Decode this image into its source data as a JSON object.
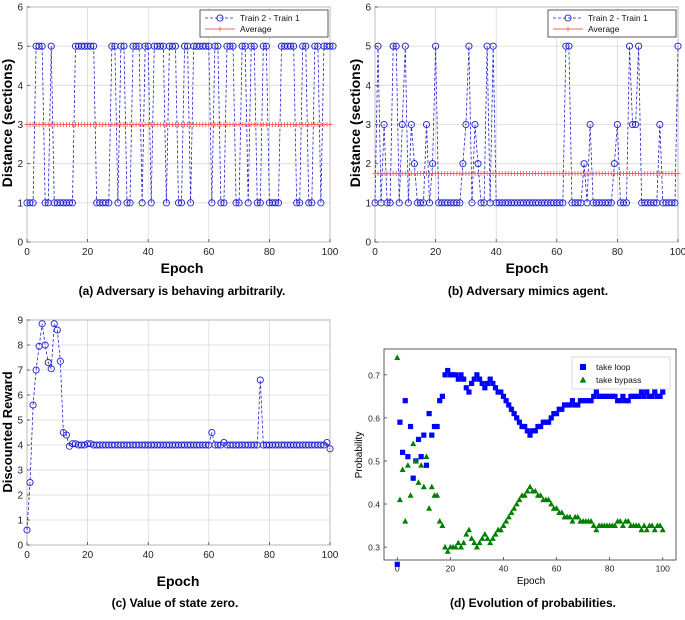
{
  "chart_data": [
    {
      "id": "a",
      "type": "line",
      "caption": "(a)  Adversary is behaving arbitrarily.",
      "xlabel": "Epoch",
      "ylabel": "Distance (sections)",
      "xlim": [
        0,
        100
      ],
      "ylim": [
        0,
        6
      ],
      "xticks": [
        "0",
        "20",
        "40",
        "60",
        "80",
        "100"
      ],
      "yticks": [
        "0",
        "1",
        "2",
        "3",
        "4",
        "5",
        "6"
      ],
      "grid": true,
      "legend_position": "top-right",
      "series": [
        {
          "name": "Train 2 - Train 1",
          "color": "#2020d0",
          "marker": "circle",
          "style": "dashed",
          "values": [
            1,
            1,
            1,
            5,
            5,
            5,
            1,
            1,
            5,
            1,
            1,
            1,
            1,
            1,
            1,
            1,
            5,
            5,
            5,
            5,
            5,
            5,
            5,
            1,
            1,
            1,
            1,
            1,
            5,
            5,
            1,
            5,
            5,
            1,
            1,
            5,
            5,
            5,
            1,
            5,
            5,
            1,
            5,
            5,
            5,
            5,
            1,
            5,
            5,
            5,
            1,
            1,
            5,
            5,
            1,
            5,
            5,
            5,
            5,
            5,
            5,
            1,
            5,
            5,
            1,
            1,
            5,
            5,
            5,
            1,
            1,
            5,
            5,
            1,
            5,
            5,
            1,
            1,
            5,
            5,
            1,
            1,
            1,
            1,
            5,
            5,
            5,
            5,
            5,
            1,
            1,
            5,
            5,
            1,
            1,
            5,
            5,
            1,
            5,
            5,
            5,
            5
          ]
        },
        {
          "name": "Average",
          "color": "#ff6060",
          "marker": "plus",
          "style": "solid",
          "values": [
            3
          ]
        }
      ]
    },
    {
      "id": "b",
      "type": "line",
      "caption": "(b)  Adversary mimics agent.",
      "xlabel": "Epoch",
      "ylabel": "Distance (sections)",
      "xlim": [
        0,
        100
      ],
      "ylim": [
        0,
        6
      ],
      "xticks": [
        "0",
        "20",
        "40",
        "60",
        "80",
        "100"
      ],
      "yticks": [
        "0",
        "1",
        "2",
        "3",
        "4",
        "5",
        "6"
      ],
      "grid": true,
      "legend_position": "top-right",
      "series": [
        {
          "name": "Train 2 - Train 1",
          "color": "#2020d0",
          "marker": "circle",
          "style": "dashed",
          "values": [
            1,
            5,
            1,
            3,
            1,
            1,
            5,
            5,
            1,
            3,
            5,
            1,
            3,
            2,
            1,
            1,
            1,
            3,
            1,
            2,
            5,
            1,
            1,
            1,
            1,
            1,
            1,
            1,
            1,
            2,
            3,
            5,
            1,
            3,
            2,
            1,
            1,
            5,
            1,
            5,
            1,
            1,
            1,
            1,
            1,
            1,
            1,
            1,
            1,
            1,
            1,
            1,
            1,
            1,
            1,
            1,
            1,
            1,
            1,
            1,
            1,
            1,
            1,
            5,
            5,
            1,
            1,
            1,
            1,
            2,
            1,
            3,
            1,
            1,
            1,
            1,
            1,
            1,
            1,
            2,
            3,
            1,
            1,
            1,
            5,
            3,
            3,
            5,
            1,
            1,
            1,
            1,
            1,
            1,
            3,
            1,
            1,
            1,
            1,
            1,
            5
          ]
        },
        {
          "name": "Average",
          "color": "#ff6060",
          "marker": "plus",
          "style": "solid",
          "values": [
            1.75
          ]
        }
      ]
    },
    {
      "id": "c",
      "type": "line",
      "caption": "(c)  Value of state zero.",
      "xlabel": "Epoch",
      "ylabel": "Discounted Reward",
      "xlim": [
        0,
        100
      ],
      "ylim": [
        0,
        9
      ],
      "xticks": [
        "0",
        "20",
        "40",
        "60",
        "80",
        "100"
      ],
      "yticks": [
        "0",
        "1",
        "2",
        "3",
        "4",
        "5",
        "6",
        "7",
        "8",
        "9"
      ],
      "grid": true,
      "series": [
        {
          "name": "Value",
          "color": "#2020d0",
          "marker": "circle",
          "style": "dashed",
          "values": [
            0.6,
            2.5,
            5.6,
            7.0,
            7.95,
            8.85,
            8.0,
            7.3,
            7.05,
            8.85,
            8.6,
            7.35,
            4.5,
            4.4,
            3.95,
            4.05,
            4.05,
            4.0,
            4.0,
            4.0,
            4.05,
            4.05,
            4.0,
            4.0,
            4.0,
            4.0,
            4.0,
            4.0,
            4.0,
            4.0,
            4.0,
            4.0,
            4.0,
            4.0,
            4.0,
            4.0,
            4.0,
            4.0,
            4.0,
            4.0,
            4.0,
            4.0,
            4.0,
            4.0,
            4.0,
            4.0,
            4.0,
            4.0,
            4.0,
            4.0,
            4.0,
            4.0,
            4.0,
            4.0,
            4.0,
            4.0,
            4.0,
            4.0,
            4.0,
            4.0,
            4.0,
            4.5,
            4.0,
            4.0,
            4.0,
            4.1,
            4.0,
            4.0,
            4.0,
            4.0,
            4.0,
            4.0,
            4.0,
            4.0,
            4.0,
            4.0,
            4.0,
            6.6,
            4.0,
            4.0,
            4.0,
            4.0,
            4.0,
            4.0,
            4.0,
            4.0,
            4.0,
            4.0,
            4.0,
            4.0,
            4.0,
            4.0,
            4.0,
            4.0,
            4.0,
            4.0,
            4.0,
            4.0,
            4.0,
            4.1,
            3.85
          ]
        }
      ]
    },
    {
      "id": "d",
      "type": "scatter",
      "caption": "(d)  Evolution of probabilities.",
      "xlabel": "Epoch",
      "ylabel": "Probability",
      "xlim": [
        -5,
        105
      ],
      "ylim": [
        0.27,
        0.76
      ],
      "xticks": [
        "0",
        "20",
        "40",
        "60",
        "80",
        "100"
      ],
      "yticks": [
        "0.3",
        "0.4",
        "0.5",
        "0.6",
        "0.7"
      ],
      "grid": false,
      "legend_position": "top-right",
      "series": [
        {
          "name": "take loop",
          "color": "#0000ff",
          "marker": "square",
          "values": [
            0.26,
            0.59,
            0.52,
            0.64,
            0.51,
            0.58,
            0.46,
            0.5,
            0.55,
            0.51,
            0.56,
            0.49,
            0.61,
            0.56,
            0.58,
            0.58,
            0.64,
            0.65,
            0.7,
            0.71,
            0.7,
            0.7,
            0.7,
            0.69,
            0.7,
            0.69,
            0.67,
            0.66,
            0.68,
            0.69,
            0.7,
            0.69,
            0.68,
            0.67,
            0.68,
            0.69,
            0.68,
            0.67,
            0.66,
            0.66,
            0.65,
            0.64,
            0.63,
            0.62,
            0.61,
            0.6,
            0.59,
            0.58,
            0.58,
            0.57,
            0.56,
            0.57,
            0.57,
            0.58,
            0.58,
            0.59,
            0.59,
            0.59,
            0.6,
            0.61,
            0.61,
            0.62,
            0.62,
            0.63,
            0.63,
            0.63,
            0.64,
            0.63,
            0.63,
            0.64,
            0.64,
            0.64,
            0.64,
            0.64,
            0.65,
            0.66,
            0.65,
            0.65,
            0.65,
            0.65,
            0.65,
            0.65,
            0.65,
            0.64,
            0.64,
            0.65,
            0.64,
            0.64,
            0.65,
            0.65,
            0.65,
            0.65,
            0.66,
            0.65,
            0.66,
            0.65,
            0.65,
            0.66,
            0.65,
            0.65,
            0.66
          ]
        },
        {
          "name": "take bypass",
          "color": "#008000",
          "marker": "triangle",
          "values": [
            0.74,
            0.41,
            0.48,
            0.36,
            0.49,
            0.42,
            0.54,
            0.5,
            0.45,
            0.49,
            0.44,
            0.51,
            0.39,
            0.44,
            0.42,
            0.42,
            0.36,
            0.35,
            0.3,
            0.29,
            0.3,
            0.3,
            0.3,
            0.31,
            0.3,
            0.31,
            0.33,
            0.34,
            0.32,
            0.31,
            0.3,
            0.31,
            0.32,
            0.33,
            0.32,
            0.31,
            0.32,
            0.33,
            0.34,
            0.34,
            0.35,
            0.36,
            0.37,
            0.38,
            0.39,
            0.4,
            0.41,
            0.42,
            0.42,
            0.43,
            0.44,
            0.43,
            0.43,
            0.42,
            0.42,
            0.41,
            0.41,
            0.41,
            0.4,
            0.39,
            0.39,
            0.38,
            0.38,
            0.37,
            0.37,
            0.37,
            0.36,
            0.37,
            0.37,
            0.36,
            0.36,
            0.36,
            0.36,
            0.36,
            0.35,
            0.34,
            0.35,
            0.35,
            0.35,
            0.35,
            0.35,
            0.35,
            0.35,
            0.36,
            0.36,
            0.35,
            0.36,
            0.36,
            0.35,
            0.35,
            0.35,
            0.35,
            0.34,
            0.35,
            0.34,
            0.35,
            0.35,
            0.34,
            0.35,
            0.35,
            0.34
          ]
        }
      ]
    }
  ]
}
